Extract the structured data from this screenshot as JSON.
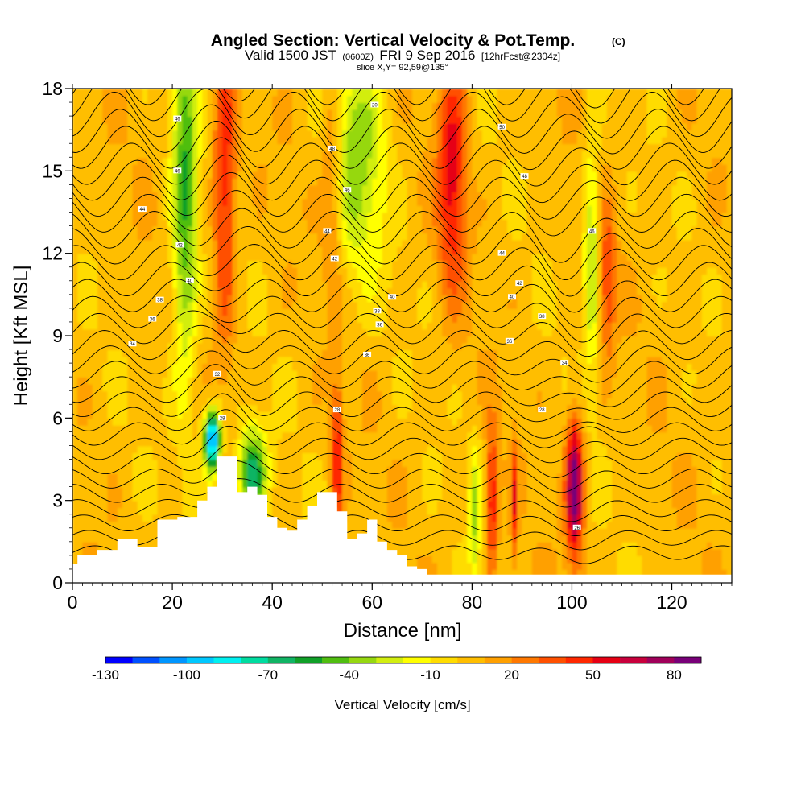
{
  "chart_data": {
    "type": "heatmap",
    "title": "Angled Section: Vertical Velocity & Pot.Temp.",
    "title_mark": "(C)",
    "subtitle": {
      "valid": "Valid 1500 JST",
      "utc": "(0600Z)",
      "date": "FRI 9 Sep 2016",
      "fcst": "[12hrFcst@2304z]"
    },
    "slice_label": "slice X,Y= 92,59@135°",
    "xlabel": "Distance [nm]",
    "ylabel": "Height [Kft MSL]",
    "xlim": [
      0,
      132
    ],
    "ylim": [
      0,
      18
    ],
    "x_ticks": [
      "0",
      "20",
      "40",
      "60",
      "80",
      "100",
      "120"
    ],
    "y_ticks": [
      "0",
      "3",
      "6",
      "9",
      "12",
      "15",
      "18"
    ],
    "colorbar": {
      "label": "Vertical Velocity [cm/s]",
      "tick_labels": [
        "-130",
        "-100",
        "-70",
        "-40",
        "-10",
        "20",
        "50",
        "80"
      ],
      "range": [
        -130,
        90
      ],
      "colors": [
        "#0000ff",
        "#0050ff",
        "#0096ff",
        "#00c8ff",
        "#00f0f0",
        "#00dca0",
        "#10b464",
        "#10a028",
        "#50be10",
        "#96d810",
        "#d2ee10",
        "#ffff00",
        "#ffdc00",
        "#ffbe00",
        "#ffa000",
        "#ff7800",
        "#ff5000",
        "#ff2800",
        "#e60014",
        "#c8003c",
        "#a0005a",
        "#780078"
      ]
    },
    "velocity_features": [
      {
        "x": 22.5,
        "z": 14,
        "w": -55,
        "xw": 1.8,
        "zw": 5
      },
      {
        "x": 30.5,
        "z": 14.5,
        "w": 45,
        "xw": 1.6,
        "zw": 4
      },
      {
        "x": 28,
        "z": 5.2,
        "w": -115,
        "xw": 1.2,
        "zw": 0.8
      },
      {
        "x": 36,
        "z": 4,
        "w": -70,
        "xw": 2,
        "zw": 1.2
      },
      {
        "x": 52,
        "z": 15,
        "w": 30,
        "xw": 1.5,
        "zw": 3
      },
      {
        "x": 57,
        "z": 15.5,
        "w": -40,
        "xw": 4,
        "zw": 3
      },
      {
        "x": 53,
        "z": 4.5,
        "w": 45,
        "xw": 0.8,
        "zw": 2
      },
      {
        "x": 76,
        "z": 15,
        "w": 50,
        "xw": 2,
        "zw": 3
      },
      {
        "x": 84,
        "z": 3,
        "w": 50,
        "xw": 0.8,
        "zw": 1.8
      },
      {
        "x": 80.5,
        "z": 2.5,
        "w": -35,
        "xw": 0.8,
        "zw": 1.8
      },
      {
        "x": 88.5,
        "z": 3,
        "w": 40,
        "xw": 0.5,
        "zw": 1.5
      },
      {
        "x": 100.5,
        "z": 3.5,
        "w": 85,
        "xw": 1.2,
        "zw": 1.8
      },
      {
        "x": 104,
        "z": 12,
        "w": -40,
        "xw": 1.2,
        "zw": 3
      },
      {
        "x": 107,
        "z": 11,
        "w": 35,
        "xw": 1.2,
        "zw": 2
      }
    ],
    "terrain": {
      "x": [
        0,
        1,
        5,
        9,
        13,
        17,
        21,
        23,
        25,
        27,
        29,
        31,
        33,
        35,
        37,
        39,
        41,
        43,
        45,
        47,
        49,
        51,
        53,
        55,
        57,
        59,
        61,
        63,
        65,
        67,
        69,
        71,
        73
      ],
      "z": [
        0.7,
        1,
        1.2,
        1.6,
        1.3,
        2.3,
        2.4,
        2.4,
        3,
        3.5,
        4.6,
        4.6,
        3.3,
        3.5,
        3.2,
        2.4,
        2,
        1.9,
        2.3,
        2.8,
        3.3,
        3.3,
        2.6,
        1.6,
        1.8,
        2.3,
        1.5,
        1.2,
        1,
        0.6,
        0.5,
        0.3,
        0.3
      ]
    },
    "contour_labels": [
      {
        "x": 21,
        "z": 16.9,
        "text": "46"
      },
      {
        "x": 21,
        "z": 15,
        "text": "46"
      },
      {
        "x": 14,
        "z": 13.6,
        "text": "44"
      },
      {
        "x": 21.5,
        "z": 12.3,
        "text": "42"
      },
      {
        "x": 23.5,
        "z": 11,
        "text": "40"
      },
      {
        "x": 17.5,
        "z": 10.3,
        "text": "38"
      },
      {
        "x": 16,
        "z": 9.6,
        "text": "36"
      },
      {
        "x": 12,
        "z": 8.7,
        "text": "34"
      },
      {
        "x": 29,
        "z": 7.6,
        "text": "32"
      },
      {
        "x": 30,
        "z": 6,
        "text": "28"
      },
      {
        "x": 60.5,
        "z": 17.4,
        "text": "20"
      },
      {
        "x": 86,
        "z": 16.6,
        "text": "50"
      },
      {
        "x": 52,
        "z": 15.8,
        "text": "48"
      },
      {
        "x": 90.5,
        "z": 14.8,
        "text": "48"
      },
      {
        "x": 55,
        "z": 14.3,
        "text": "46"
      },
      {
        "x": 51,
        "z": 12.8,
        "text": "44"
      },
      {
        "x": 104,
        "z": 12.8,
        "text": "46"
      },
      {
        "x": 86,
        "z": 12,
        "text": "44"
      },
      {
        "x": 52.5,
        "z": 11.8,
        "text": "42"
      },
      {
        "x": 89.5,
        "z": 10.9,
        "text": "42"
      },
      {
        "x": 64,
        "z": 10.4,
        "text": "40"
      },
      {
        "x": 88,
        "z": 10.4,
        "text": "40"
      },
      {
        "x": 61,
        "z": 9.9,
        "text": "38"
      },
      {
        "x": 94,
        "z": 9.7,
        "text": "38"
      },
      {
        "x": 61.5,
        "z": 9.4,
        "text": "36"
      },
      {
        "x": 87.5,
        "z": 8.8,
        "text": "36"
      },
      {
        "x": 59,
        "z": 8.3,
        "text": "36"
      },
      {
        "x": 98.5,
        "z": 8,
        "text": "34"
      },
      {
        "x": 53,
        "z": 6.3,
        "text": "28"
      },
      {
        "x": 94,
        "z": 6.3,
        "text": "28"
      },
      {
        "x": 101,
        "z": 2,
        "text": "26"
      }
    ]
  }
}
